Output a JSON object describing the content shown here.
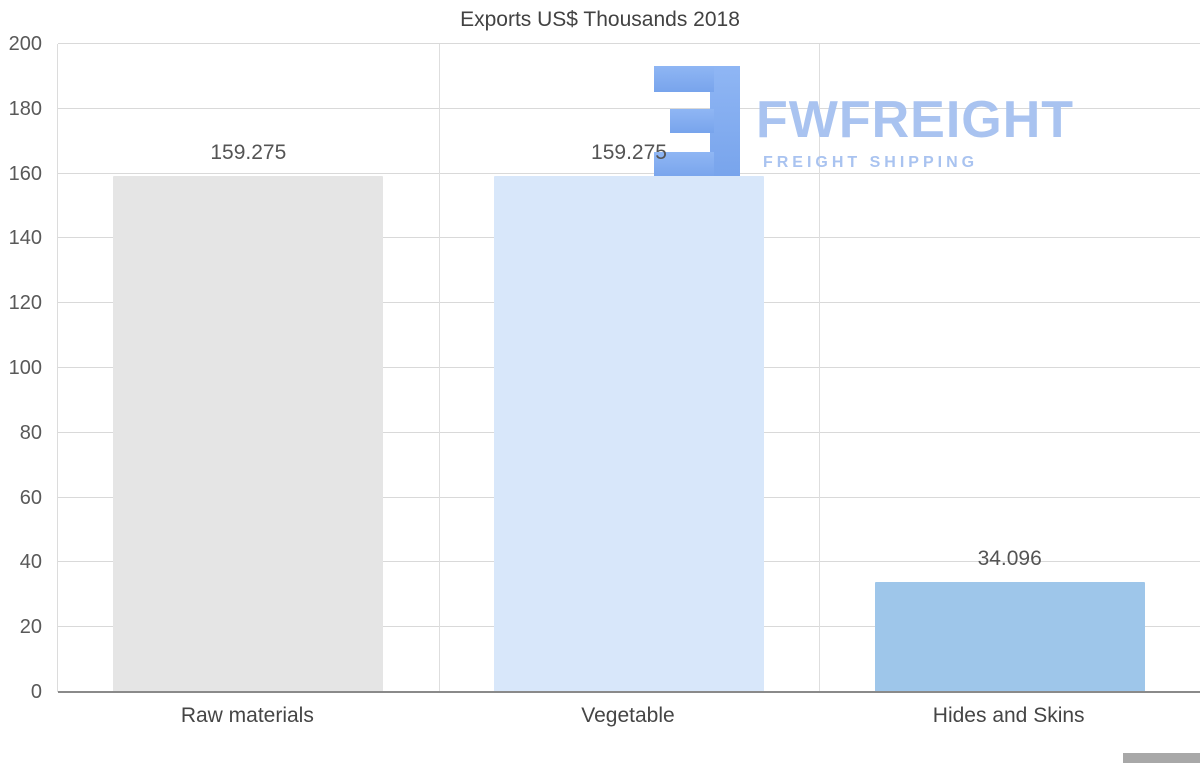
{
  "chart_data": {
    "type": "bar",
    "title": "Exports US$ Thousands 2018",
    "categories": [
      "Raw materials",
      "Vegetable",
      "Hides and Skins"
    ],
    "values": [
      159.275,
      159.275,
      34.096
    ],
    "value_labels": [
      "159.275",
      "159.275",
      "34.096"
    ],
    "bar_colors": [
      "#e5e5e5",
      "#d8e7fa",
      "#9ec6ea"
    ],
    "ylim": [
      0,
      200
    ],
    "ytick_step": 20,
    "yticks": [
      0,
      20,
      40,
      60,
      80,
      100,
      120,
      140,
      160,
      180,
      200
    ],
    "grid": true,
    "legend": "none",
    "grid_color": "#d9d9d9",
    "axis_text_color": "#595959"
  },
  "watermark": {
    "name": "FWFREIGHT",
    "subtitle": "FREIGHT SHIPPING",
    "color": "#a9c3f0",
    "logo_color": "#86aef1",
    "logo_icon": "fwfreight-logo-icon"
  }
}
